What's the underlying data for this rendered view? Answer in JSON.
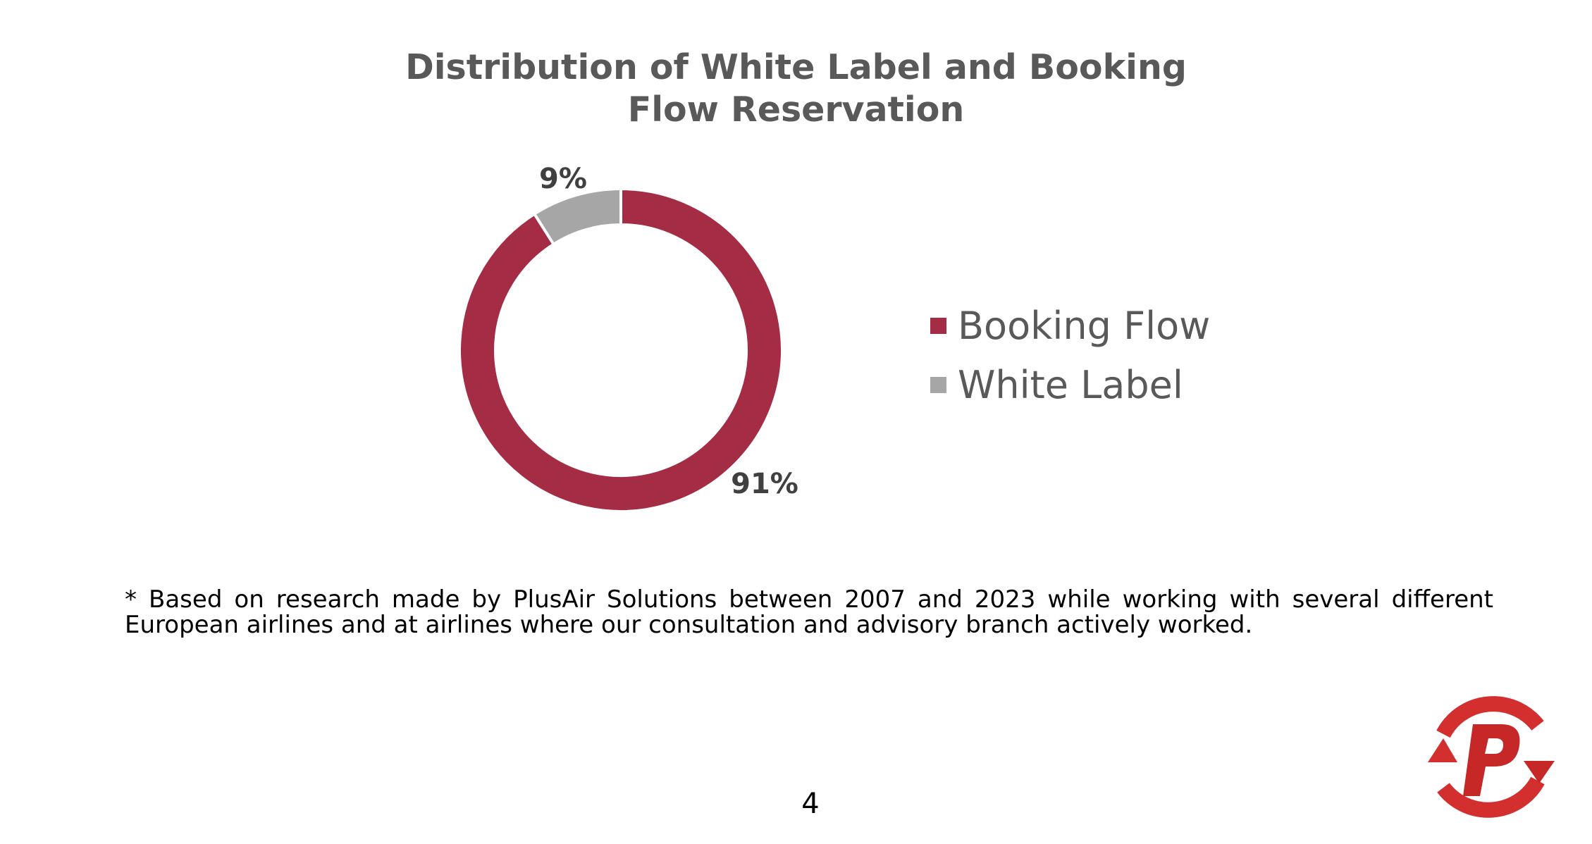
{
  "chart_data": {
    "type": "pie",
    "variant": "donut",
    "title": "Distribution of White Label and Booking Flow Reservation",
    "title_lines": [
      "Distribution of White Label and Booking",
      "Flow Reservation"
    ],
    "series": [
      {
        "name": "Booking Flow",
        "value": 91,
        "label": "91%",
        "color": "#A52C45"
      },
      {
        "name": "White Label",
        "value": 9,
        "label": "9%",
        "color": "#A6A6A6"
      }
    ],
    "legend": {
      "position": "right",
      "entries": [
        "Booking Flow",
        "White Label"
      ]
    }
  },
  "footnote": "* Based on research made by PlusAir Solutions between 2007 and 2023 while working with several different European airlines and at airlines where our consultation and advisory branch actively worked.",
  "page_number": "4",
  "logo": {
    "icon": "plusair-p-logo-icon",
    "colors": {
      "primary": "#D32F2F",
      "dark": "#B71C1C"
    }
  }
}
